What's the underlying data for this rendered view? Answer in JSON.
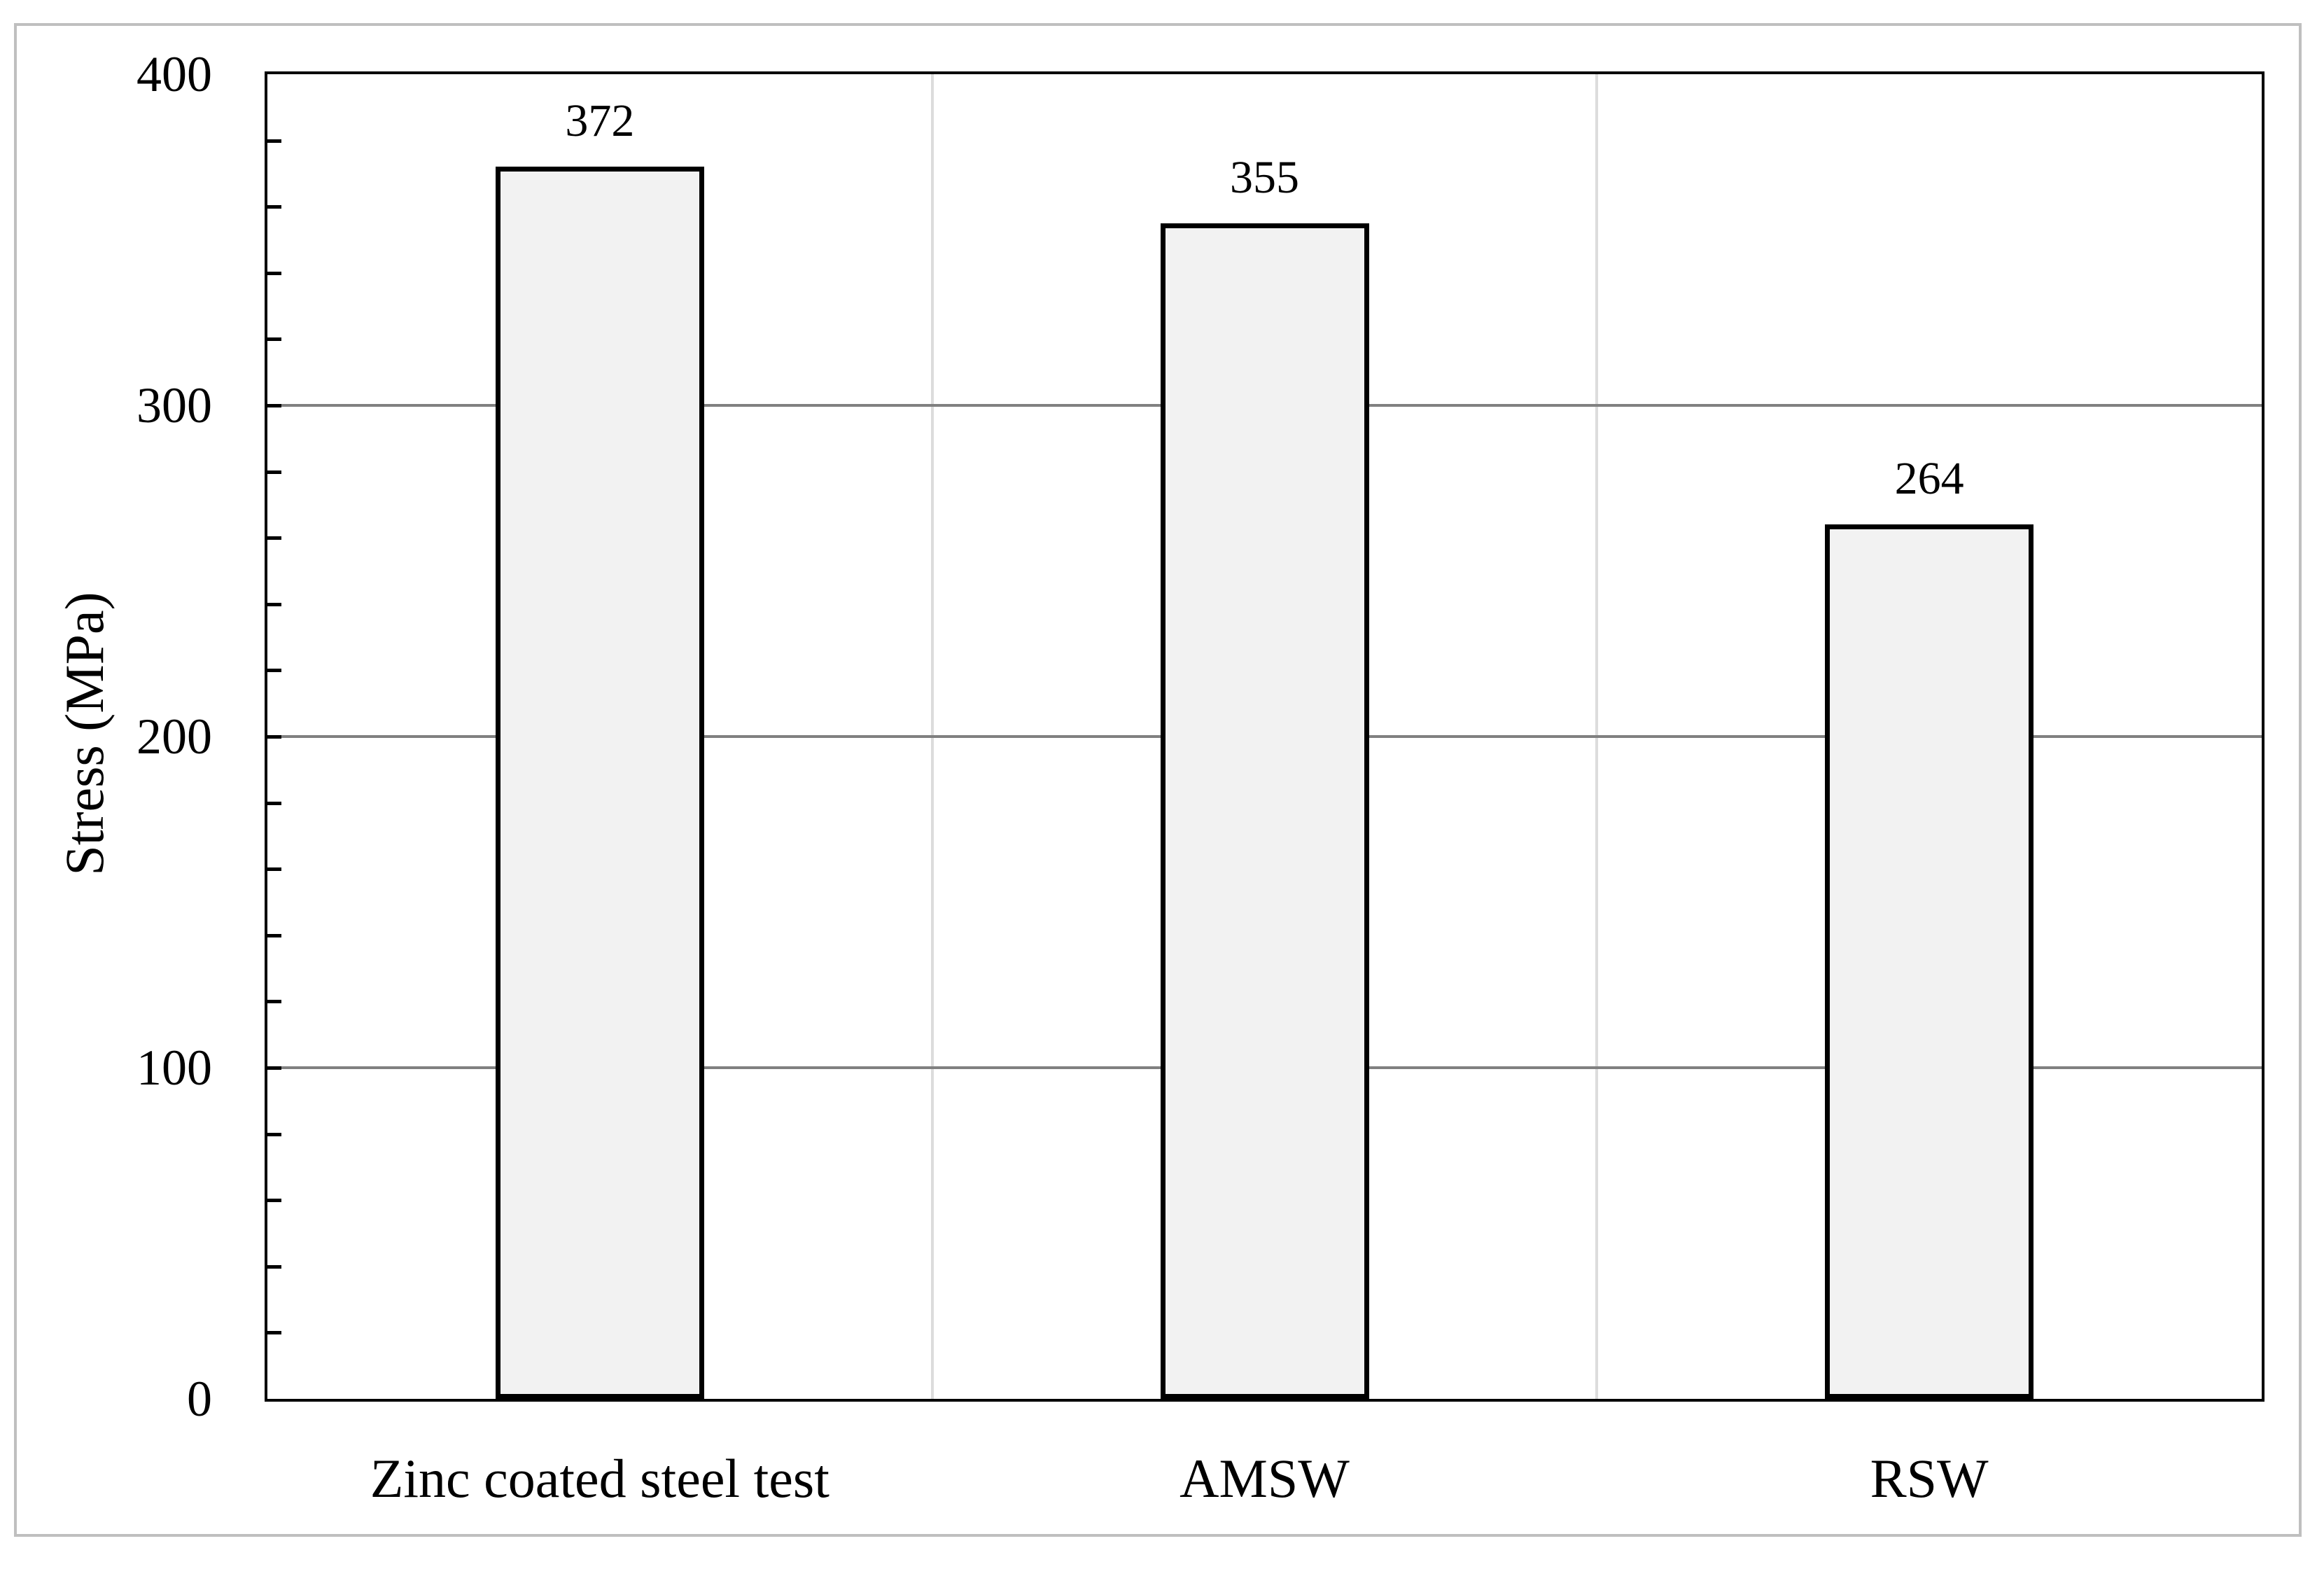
{
  "chart_data": {
    "type": "bar",
    "title": "",
    "categories": [
      "Zinc coated steel test",
      "AMSW",
      "RSW"
    ],
    "values": [
      372,
      355,
      264
    ],
    "xlabel": "",
    "ylabel": "Stress (MPa)",
    "ylim": [
      0,
      400
    ],
    "yticks": [
      0,
      100,
      200,
      300,
      400
    ],
    "minor_tick_step": 20,
    "grid": {
      "horizontal_major": true,
      "vertical_category_separators": true
    },
    "legend": "none",
    "data_labels_shown": true,
    "colors": {
      "background": "#ffffff",
      "outer_border": "#bfbfbf",
      "axis": "#000000",
      "bar_fill": "#f2f2f2",
      "bar_border": "#000000",
      "gridline_major": "#808080",
      "category_separator": "#dcdcdc",
      "text": "#000000"
    }
  }
}
